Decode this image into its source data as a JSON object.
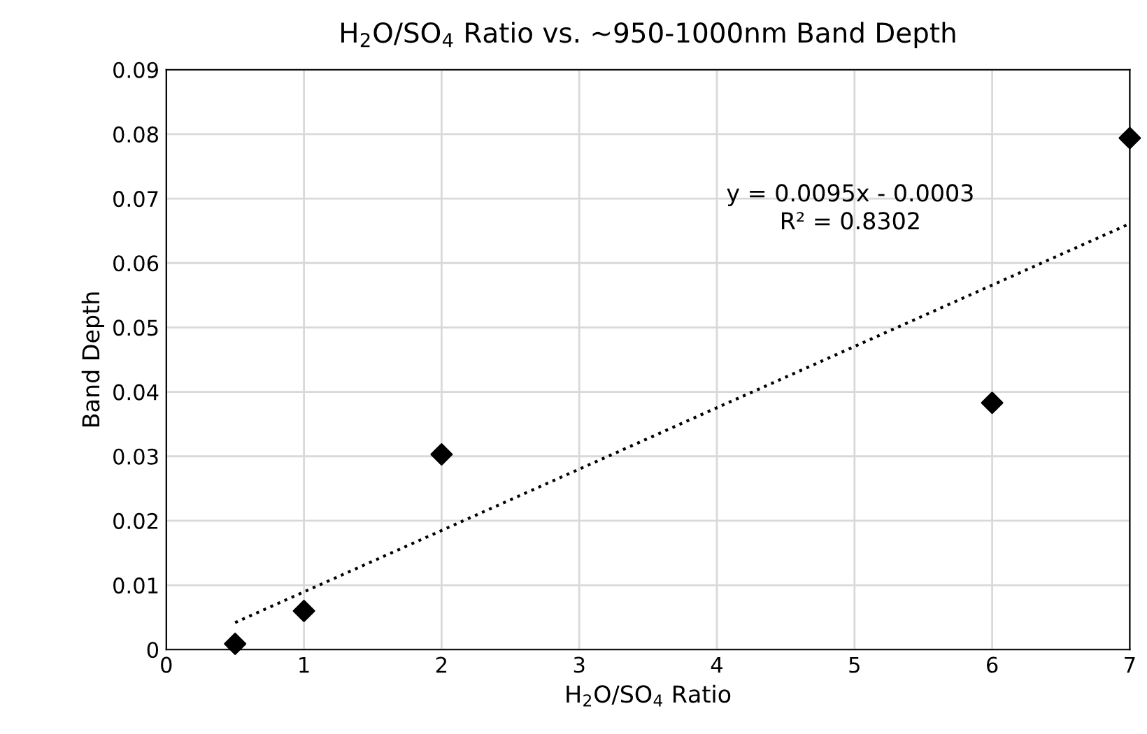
{
  "chart_data": {
    "type": "scatter",
    "title": "H$_{2}$O/SO$_{4}$ Ratio vs. ~950-1000nm Band Depth",
    "xlabel": "H$_{2}$O/SO$_{4}$ Ratio",
    "ylabel": "Band Depth",
    "series": [
      {
        "color": "#000000",
        "marker": "diamond",
        "x": [
          0.5,
          1,
          2,
          6,
          7
        ],
        "values": [
          0.0009,
          0.006,
          0.0303,
          0.0383,
          0.0794
        ]
      },
      {
        "type": "line",
        "color": "#000000",
        "line_style": "dotted",
        "marker": "none",
        "x": [
          0.5,
          7
        ],
        "values": [
          0.0042,
          0.0661
        ]
      }
    ],
    "annotations": [
      "y = 0.0095x - 0.0003\nR² = 0.8302"
    ],
    "xlim": [
      0,
      7
    ],
    "xticks": [
      0,
      1,
      2,
      3,
      4,
      5,
      6,
      7
    ],
    "ylim": [
      0,
      0.09
    ],
    "yticks": [
      0,
      0.01,
      0.02,
      0.03,
      0.04,
      0.05,
      0.06,
      0.07,
      0.08,
      0.09
    ],
    "grid": true,
    "legend": false
  }
}
